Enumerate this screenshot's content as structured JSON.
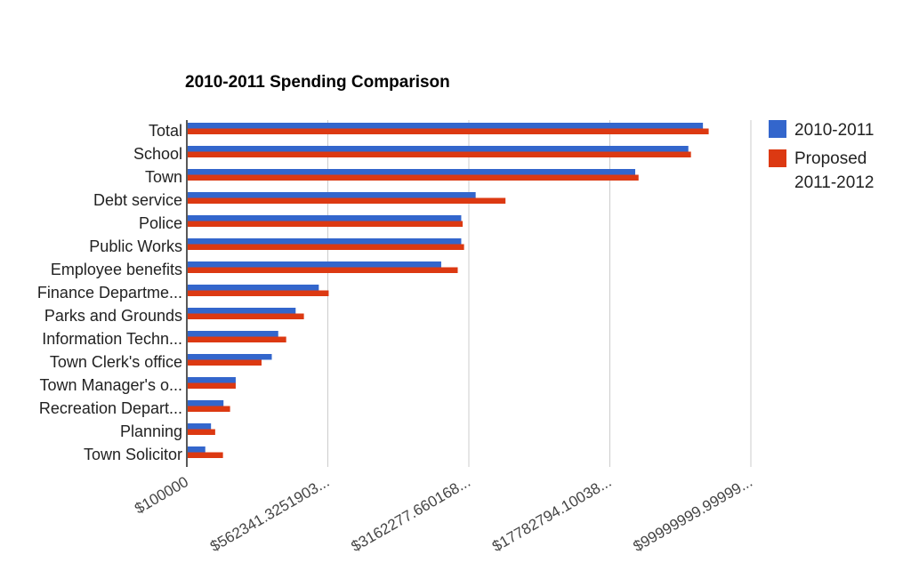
{
  "chart_data": {
    "type": "bar",
    "orientation": "horizontal",
    "title": "2010-2011 Spending Comparison",
    "xscale": "log",
    "xlim": [
      100000,
      100000000
    ],
    "categories": [
      "Total",
      "School",
      "Town",
      "Debt service",
      "Police",
      "Public Works",
      "Employee benefits",
      "Finance Departme...",
      "Parks and Grounds",
      "Information Techn...",
      "Town Clerk's office",
      "Town Manager's o...",
      "Recreation Depart...",
      "Planning",
      "Town Solicitor"
    ],
    "series": [
      {
        "name": "2010-2011",
        "color": "#3366cc",
        "values": [
          55000000,
          46000000,
          24000000,
          3400000,
          2850000,
          2850000,
          2230000,
          498000,
          375000,
          303000,
          280000,
          180000,
          155000,
          133000,
          124000
        ]
      },
      {
        "name": "Proposed 2011-2012",
        "color": "#dc3912",
        "values": [
          59000000,
          47500000,
          25000000,
          4900000,
          2900000,
          2950000,
          2730000,
          562000,
          415000,
          334000,
          247000,
          180000,
          168000,
          140000,
          154000
        ]
      }
    ],
    "xticks": [
      "$100000",
      "$562341.3251903...",
      "$3162277.660168...",
      "$17782794.10038...",
      "$99999999.99999..."
    ],
    "legend": {
      "position": "right",
      "entries": [
        {
          "label": "2010-2011",
          "color": "#3366cc"
        },
        {
          "label_line1": "Proposed",
          "label_line2": "2011-2012",
          "color": "#dc3912"
        }
      ]
    },
    "grid": true
  }
}
